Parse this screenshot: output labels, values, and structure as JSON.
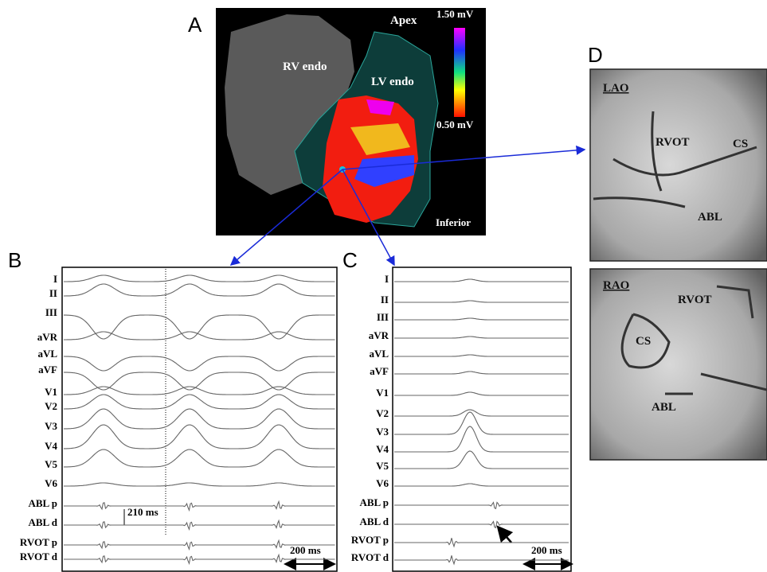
{
  "panels": {
    "a": {
      "label": "A",
      "apex": "Apex",
      "rv_endo": "RV endo",
      "lv_endo": "LV endo",
      "scale_max": "1.50 mV",
      "scale_min": "0.50 mV",
      "view": "Inferior"
    },
    "b": {
      "label": "B",
      "leads": [
        "I",
        "II",
        "III",
        "aVR",
        "aVL",
        "aVF",
        "V1",
        "V2",
        "V3",
        "V4",
        "V5",
        "V6",
        "ABL p",
        "ABL d",
        "RVOT p",
        "RVOT d"
      ],
      "interval": "210 ms",
      "scale_bar": "200 ms"
    },
    "c": {
      "label": "C",
      "leads": [
        "I",
        "II",
        "III",
        "aVR",
        "aVL",
        "aVF",
        "V1",
        "V2",
        "V3",
        "V4",
        "V5",
        "V6",
        "ABL p",
        "ABL d",
        "RVOT p",
        "RVOT d"
      ],
      "scale_bar": "200 ms"
    },
    "d": {
      "label": "D",
      "lao": {
        "title": "LAO",
        "rvot": "RVOT",
        "cs": "CS",
        "abl": "ABL"
      },
      "rao": {
        "title": "RAO",
        "rvot": "RVOT",
        "cs": "CS",
        "abl": "ABL"
      }
    }
  }
}
